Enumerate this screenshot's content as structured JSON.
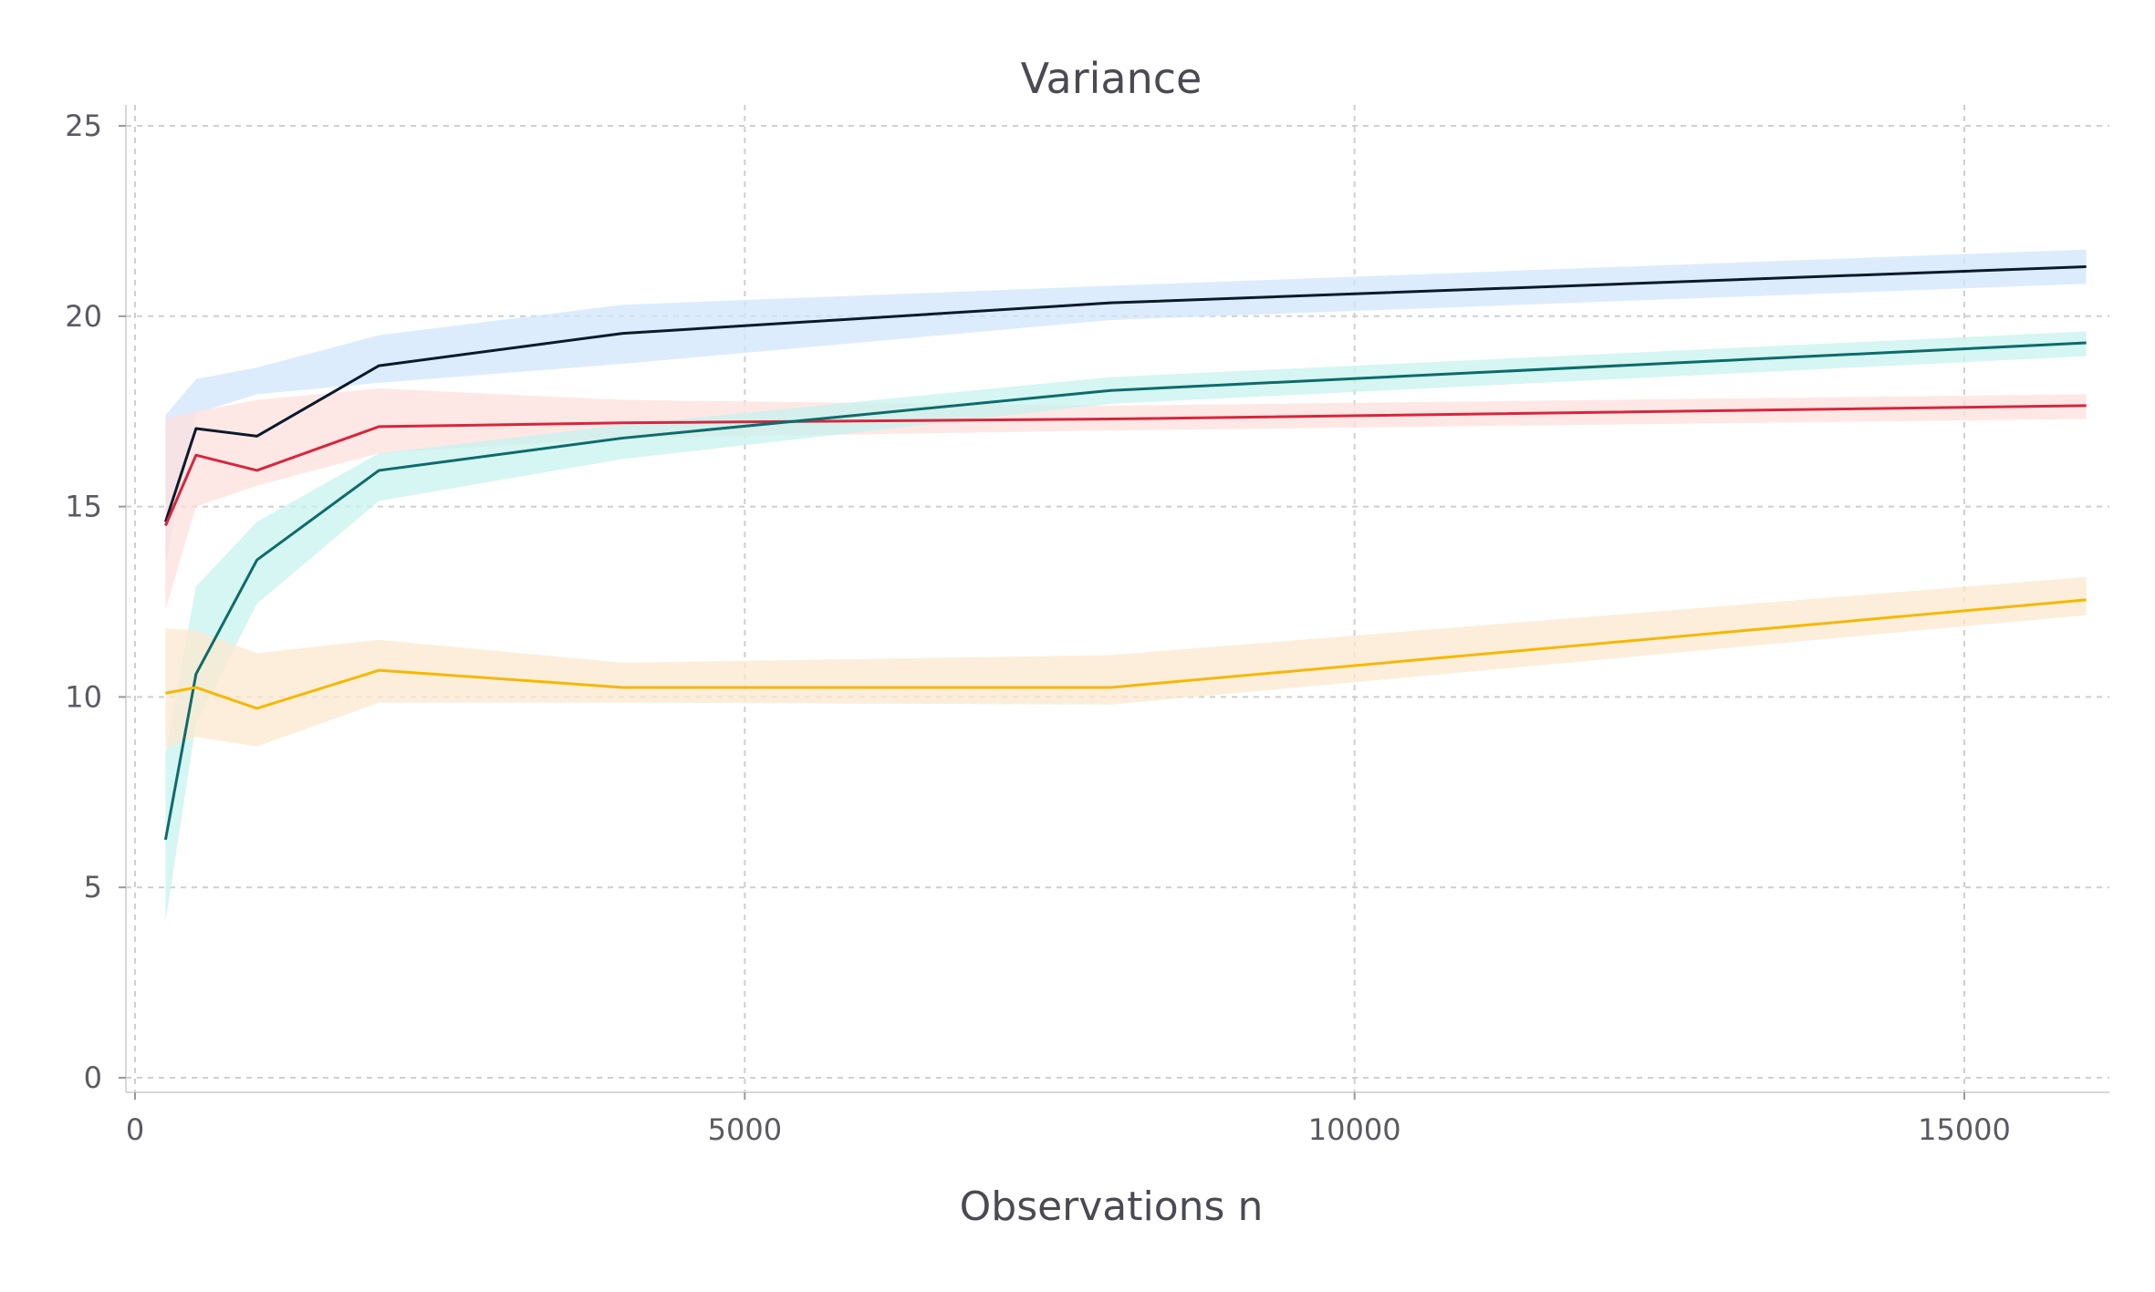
{
  "chart_data": {
    "type": "line",
    "title": "Variance",
    "xlabel": "Observations n",
    "ylabel": "",
    "xlim": [
      0,
      16200
    ],
    "ylim": [
      0,
      25.5
    ],
    "x_ticks": [
      0,
      5000,
      10000,
      15000
    ],
    "x_tick_labels": [
      "0",
      "5000",
      "10000",
      "15000"
    ],
    "y_ticks": [
      0,
      5,
      10,
      15,
      20,
      25
    ],
    "y_tick_labels": [
      "0",
      "5",
      "10",
      "15",
      "20",
      "25"
    ],
    "grid": true,
    "legend": "none",
    "x": [
      250,
      500,
      1000,
      2000,
      4000,
      8000,
      16000
    ],
    "series": [
      {
        "color": "#0b1a2b",
        "band_color": "#d2e6fb",
        "values": [
          14.6,
          17.05,
          16.85,
          18.7,
          19.55,
          20.35,
          21.3
        ],
        "lower": [
          13.5,
          17.45,
          17.95,
          18.25,
          18.75,
          19.9,
          20.85
        ],
        "upper": [
          17.4,
          18.35,
          18.65,
          19.5,
          20.3,
          20.8,
          21.75
        ]
      },
      {
        "color": "#d7263d",
        "band_color": "#fde0dd",
        "values": [
          14.5,
          16.35,
          15.95,
          17.1,
          17.2,
          17.3,
          17.65
        ],
        "lower": [
          12.3,
          15.0,
          15.55,
          16.4,
          16.8,
          17.0,
          17.3
        ],
        "upper": [
          17.3,
          17.5,
          17.8,
          18.1,
          17.8,
          17.65,
          17.95
        ]
      },
      {
        "color": "#0e6b6b",
        "band_color": "#c7f3ee",
        "values": [
          6.25,
          10.6,
          13.6,
          15.95,
          16.8,
          18.05,
          19.3
        ],
        "lower": [
          4.1,
          9.3,
          12.45,
          15.15,
          16.25,
          17.7,
          18.95
        ],
        "upper": [
          8.5,
          12.9,
          14.6,
          16.4,
          17.15,
          18.4,
          19.6
        ]
      },
      {
        "color": "#f5b800",
        "band_color": "#fbe8cf",
        "values": [
          10.1,
          10.25,
          9.7,
          10.7,
          10.25,
          10.25,
          12.55
        ],
        "lower": [
          8.65,
          8.95,
          8.7,
          9.85,
          9.85,
          9.8,
          12.15
        ],
        "upper": [
          11.8,
          11.75,
          11.15,
          11.5,
          10.9,
          11.1,
          13.15
        ]
      }
    ]
  }
}
